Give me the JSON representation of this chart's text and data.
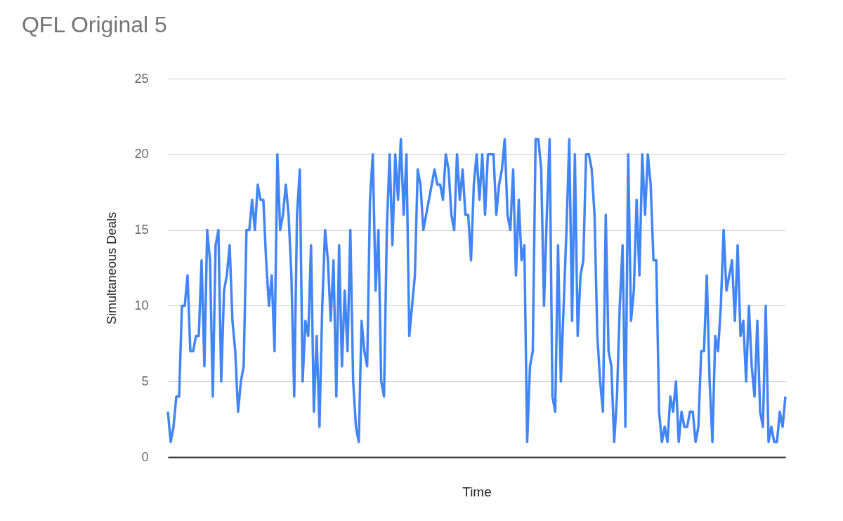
{
  "chart_data": {
    "type": "line",
    "title": "QFL Original 5",
    "xlabel": "Time",
    "ylabel": "Simultaneous Deals",
    "categories": [
      null,
      null,
      null,
      null,
      null,
      null,
      null,
      null,
      null,
      null,
      null,
      null,
      null,
      null,
      null,
      null,
      null,
      null,
      null,
      null,
      null,
      null,
      null,
      null,
      null,
      null,
      null,
      null,
      null,
      null,
      null,
      null,
      null,
      null,
      null,
      null,
      null,
      null,
      null,
      null,
      null,
      null,
      null,
      null,
      null,
      null,
      null,
      null,
      null,
      null,
      null,
      null,
      null,
      null,
      null,
      null,
      null,
      null,
      null,
      null,
      null,
      null,
      null,
      null,
      null,
      null,
      null,
      null,
      null,
      null,
      null,
      null,
      null,
      null,
      null,
      null,
      null,
      null,
      null,
      null,
      null,
      null,
      null,
      null,
      null,
      null,
      null,
      null,
      null,
      null,
      null,
      null,
      null,
      null,
      null,
      null,
      null,
      null,
      null,
      null,
      null,
      null,
      null,
      null,
      null,
      null,
      null,
      null,
      null,
      null,
      null,
      null,
      null,
      null,
      null,
      null,
      null,
      null,
      null,
      null,
      null,
      null,
      null,
      null,
      null,
      null,
      null,
      null,
      null,
      null,
      null,
      null,
      null,
      null,
      null,
      null,
      null,
      null,
      null,
      null,
      null,
      null,
      null,
      null,
      null,
      null,
      null,
      null,
      null,
      null,
      null,
      null,
      null,
      null,
      null,
      null,
      null,
      null,
      null,
      null,
      null,
      null,
      null,
      null,
      null,
      null,
      null,
      null,
      null,
      null,
      null,
      null,
      null,
      null,
      null,
      null,
      null,
      null,
      null,
      null,
      null,
      null,
      null,
      null,
      null,
      null,
      null,
      null,
      null,
      null,
      null,
      null,
      null,
      null,
      null,
      null,
      null,
      null,
      null,
      null,
      null,
      null,
      null,
      null,
      null,
      null,
      null,
      null,
      null,
      null,
      null,
      null,
      null,
      null,
      null,
      null,
      null,
      null,
      null,
      null,
      null
    ],
    "series": [
      {
        "color": "#4285f4",
        "values": [
          3,
          1,
          2,
          4,
          4,
          10,
          10,
          12,
          7,
          7,
          8,
          8,
          13,
          6,
          15,
          13,
          4,
          14,
          15,
          5,
          11,
          12,
          14,
          9,
          7,
          3,
          5,
          6,
          15,
          15,
          17,
          15,
          18,
          17,
          17,
          13,
          10,
          12,
          7,
          20,
          15,
          16,
          18,
          16,
          12,
          4,
          16,
          19,
          5,
          9,
          8,
          14,
          3,
          8,
          2,
          10,
          15,
          13,
          9,
          13,
          4,
          14,
          6,
          11,
          7,
          15,
          5,
          2,
          1,
          9,
          7,
          6,
          17,
          20,
          11,
          15,
          5,
          4,
          15,
          20,
          14,
          20,
          17,
          21,
          16,
          20,
          8,
          10,
          12,
          19,
          18,
          15,
          16,
          17,
          18,
          19,
          18,
          18,
          17,
          20,
          19,
          16,
          15,
          20,
          17,
          19,
          16,
          16,
          13,
          18,
          20,
          17,
          20,
          16,
          20,
          20,
          20,
          16,
          18,
          19,
          21,
          16,
          15,
          19,
          12,
          17,
          13,
          14,
          1,
          6,
          7,
          21,
          21,
          19,
          10,
          16,
          21,
          4,
          3,
          14,
          5,
          10,
          15,
          21,
          9,
          20,
          8,
          12,
          13,
          20,
          20,
          19,
          16,
          8,
          5,
          3,
          16,
          7,
          6,
          1,
          4,
          10,
          14,
          2,
          20,
          9,
          11,
          17,
          12,
          20,
          16,
          20,
          18,
          13,
          13,
          3,
          1,
          2,
          1,
          4,
          3,
          5,
          1,
          3,
          2,
          2,
          3,
          3,
          1,
          2,
          7,
          7,
          12,
          5,
          1,
          8,
          7,
          10,
          15,
          11,
          12,
          13,
          9,
          14,
          8,
          9,
          5,
          10,
          6,
          4,
          9,
          3,
          2,
          10,
          1,
          2,
          1,
          1,
          3,
          2,
          4
        ]
      }
    ],
    "ylim": [
      0,
      25
    ],
    "yticks": [
      0,
      5,
      10,
      15,
      20,
      25
    ],
    "grid": "y",
    "tick_labels": "y",
    "marker": "none",
    "line_style": "solid"
  }
}
